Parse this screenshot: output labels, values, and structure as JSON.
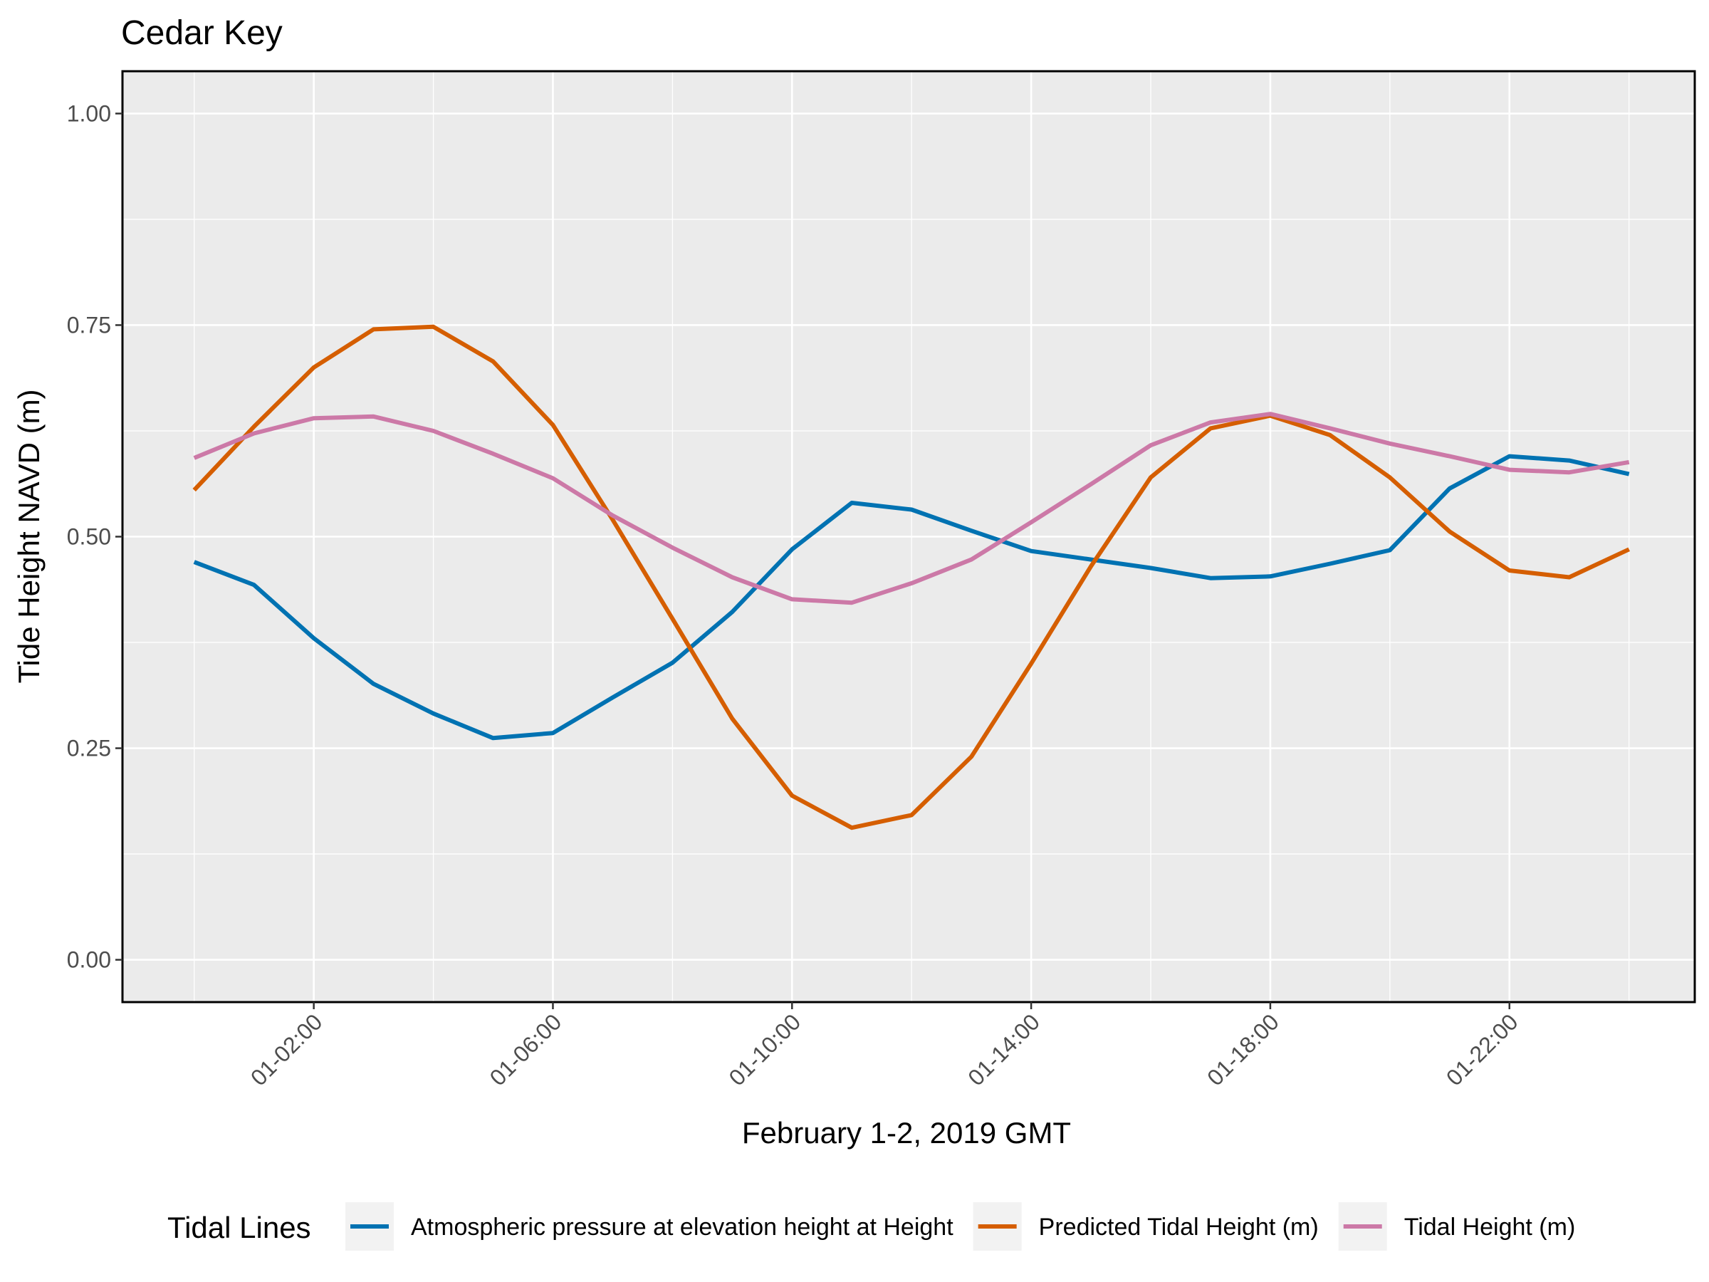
{
  "chart_data": {
    "type": "line",
    "title": "Cedar Key",
    "xlabel": "February 1-2, 2019 GMT",
    "ylabel": "Tide Height NAVD (m)",
    "x_unit": "hour (GMT, February 1)",
    "x": [
      0,
      1,
      2,
      3,
      4,
      5,
      6,
      7,
      8,
      9,
      10,
      11,
      12,
      13,
      14,
      15,
      16,
      17,
      18,
      19,
      20,
      21,
      22,
      23,
      24
    ],
    "x_ticks": [
      2,
      6,
      10,
      14,
      18,
      22
    ],
    "x_tick_labels": [
      "01-02:00",
      "01-06:00",
      "01-10:00",
      "01-14:00",
      "01-18:00",
      "01-22:00"
    ],
    "xlim": [
      -1.2,
      25.1
    ],
    "ylim": [
      -0.05,
      1.05
    ],
    "y_ticks": [
      0.0,
      0.25,
      0.5,
      0.75,
      1.0
    ],
    "y_tick_labels": [
      "0.00",
      "0.25",
      "0.50",
      "0.75",
      "1.00"
    ],
    "grid": true,
    "legend": {
      "title": "Tidal Lines",
      "position": "bottom"
    },
    "series": [
      {
        "name": "Atmospheric pressure at elevation height at Height",
        "color": "#0072B2",
        "values": [
          0.47,
          0.443,
          0.38,
          0.326,
          0.291,
          0.262,
          0.268,
          0.31,
          0.351,
          0.411,
          0.485,
          0.54,
          0.532,
          0.507,
          0.483,
          0.473,
          0.463,
          0.451,
          0.453,
          0.468,
          0.484,
          0.557,
          0.595,
          0.59,
          0.574
        ]
      },
      {
        "name": "Predicted Tidal Height (m)",
        "color": "#D55E00",
        "values": [
          0.555,
          0.63,
          0.7,
          0.745,
          0.748,
          0.707,
          0.632,
          0.52,
          0.403,
          0.285,
          0.194,
          0.156,
          0.171,
          0.24,
          0.35,
          0.465,
          0.57,
          0.628,
          0.643,
          0.62,
          0.57,
          0.506,
          0.46,
          0.452,
          0.485
        ]
      },
      {
        "name": "Tidal Height (m)",
        "color": "#CC79A7",
        "values": [
          0.593,
          0.622,
          0.64,
          0.642,
          0.625,
          0.598,
          0.569,
          0.525,
          0.487,
          0.452,
          0.426,
          0.422,
          0.445,
          0.473,
          0.517,
          0.562,
          0.608,
          0.635,
          0.645,
          0.628,
          0.61,
          0.595,
          0.579,
          0.576,
          0.588
        ]
      }
    ]
  }
}
